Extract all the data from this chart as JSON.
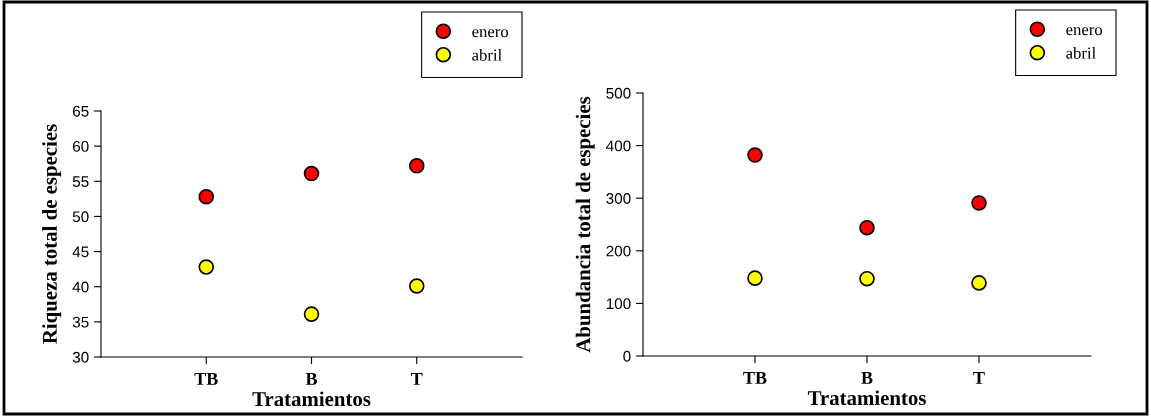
{
  "chart_data": [
    {
      "type": "scatter",
      "xlabel": "Tratamientos",
      "ylabel": "Riqueza total de especies",
      "categories": [
        "TB",
        "B",
        "T"
      ],
      "series": [
        {
          "name": "enero",
          "color": "#ff0000",
          "values": [
            52.8,
            56.1,
            57.2
          ]
        },
        {
          "name": "abril",
          "color": "#ffff00",
          "values": [
            42.8,
            36.1,
            40.1
          ]
        }
      ],
      "ylim": [
        30,
        65
      ],
      "yticks": [
        30,
        35,
        40,
        45,
        50,
        55,
        60,
        65
      ],
      "legend": "top right",
      "marker": "circle",
      "grid": false
    },
    {
      "type": "scatter",
      "xlabel": "Tratamientos",
      "ylabel": "Abundancia total de especies",
      "categories": [
        "TB",
        "B",
        "T"
      ],
      "series": [
        {
          "name": "enero",
          "color": "#ff0000",
          "values": [
            382,
            244,
            291
          ]
        },
        {
          "name": "abril",
          "color": "#ffff00",
          "values": [
            148,
            147,
            139
          ]
        }
      ],
      "ylim": [
        0,
        500
      ],
      "yticks": [
        0,
        100,
        200,
        300,
        400,
        500
      ],
      "legend": "top right",
      "marker": "circle",
      "grid": false
    }
  ]
}
